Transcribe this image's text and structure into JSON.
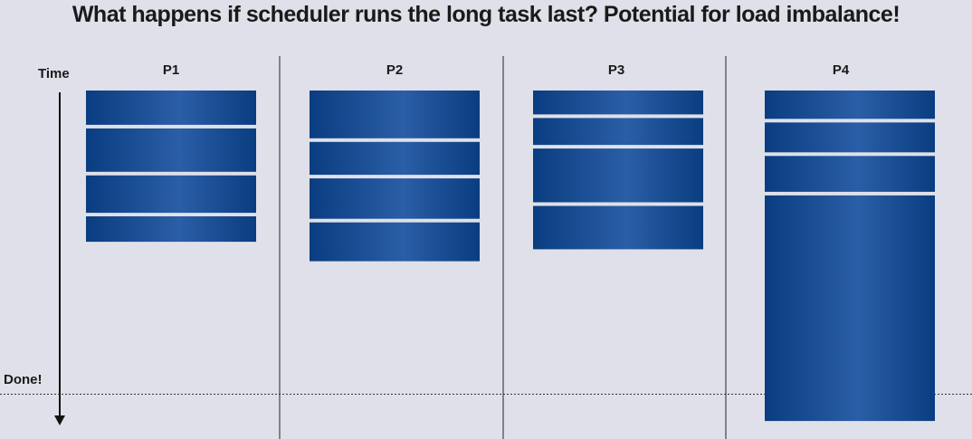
{
  "title": "What happens if scheduler runs the long task last?  Potential for load imbalance!",
  "time_label": "Time",
  "done_label": "Done!",
  "colors": {
    "task_dark": "#0a3d80",
    "task_light": "#2a5ea6",
    "background": "#dfe0e9",
    "divider": "#444444"
  },
  "processors": [
    {
      "name": "P1",
      "tasks": [
        {
          "duration": 1.15
        },
        {
          "duration": 1.45
        },
        {
          "duration": 1.25
        },
        {
          "duration": 0.85
        }
      ]
    },
    {
      "name": "P2",
      "tasks": [
        {
          "duration": 1.6
        },
        {
          "duration": 1.1
        },
        {
          "duration": 1.35
        },
        {
          "duration": 1.3
        }
      ]
    },
    {
      "name": "P3",
      "tasks": [
        {
          "duration": 0.8
        },
        {
          "duration": 0.9
        },
        {
          "duration": 1.8
        },
        {
          "duration": 1.45
        }
      ]
    },
    {
      "name": "P4",
      "tasks": [
        {
          "duration": 0.95
        },
        {
          "duration": 1.0
        },
        {
          "duration": 1.2
        },
        {
          "duration": 7.55
        }
      ]
    }
  ]
}
